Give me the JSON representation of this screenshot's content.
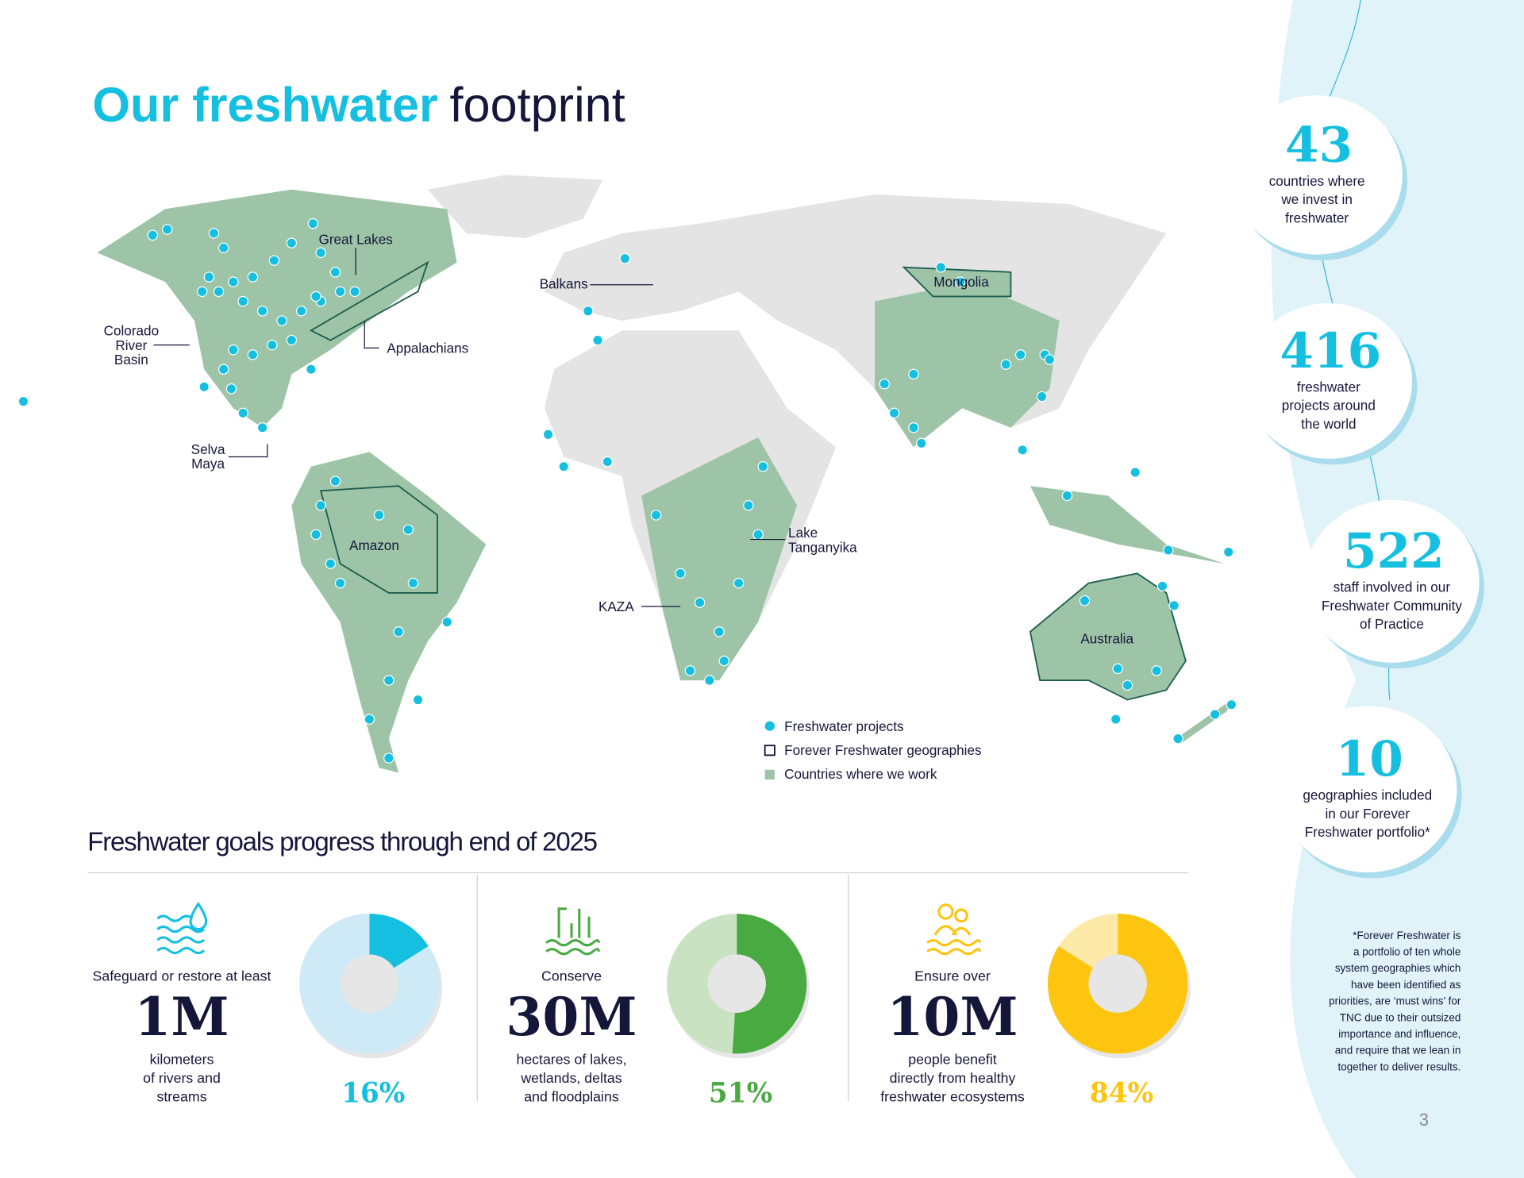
{
  "title": {
    "highlight": "Our freshwater",
    "rest": "footprint"
  },
  "stats": [
    {
      "number": 43,
      "lines": [
        "countries where",
        "we invest in",
        "freshwater"
      ]
    },
    {
      "number": 416,
      "lines": [
        "freshwater",
        "projects around",
        "the world"
      ]
    },
    {
      "number": 522,
      "lines": [
        "staff involved in our",
        "Freshwater Community",
        "of Practice"
      ]
    },
    {
      "number": 10,
      "lines": [
        "geographies included",
        "in our Forever",
        "Freshwater portfolio*"
      ]
    }
  ],
  "map": {
    "labels": [
      {
        "lines": [
          "Great Lakes"
        ]
      },
      {
        "lines": [
          "Balkans"
        ]
      },
      {
        "lines": [
          "Mongolia"
        ]
      },
      {
        "lines": [
          "Colorado",
          "River",
          "Basin"
        ]
      },
      {
        "lines": [
          "Appalachians"
        ]
      },
      {
        "lines": [
          "Selva",
          "Maya"
        ]
      },
      {
        "lines": [
          "Amazon"
        ]
      },
      {
        "lines": [
          "Lake",
          "Tanganyika"
        ]
      },
      {
        "lines": [
          "KAZA"
        ]
      },
      {
        "lines": [
          "Australia"
        ]
      }
    ],
    "legend": [
      "Freshwater projects",
      "Forever Freshwater geographies",
      "Countries where we work"
    ]
  },
  "goals": {
    "heading": "Freshwater goals progress through end of 2025",
    "items": [
      {
        "intro": "Safeguard or restore at least",
        "amount": "1M",
        "lines": [
          "kilometers",
          "of rivers and",
          "streams"
        ]
      },
      {
        "intro": "Conserve",
        "amount": "30M",
        "lines": [
          "hectares of lakes,",
          "wetlands, deltas",
          "and floodplains"
        ]
      },
      {
        "intro": "Ensure over",
        "amount": "10M",
        "lines": [
          "people benefit",
          "directly from healthy",
          "freshwater ecosystems"
        ]
      }
    ]
  },
  "chart_data": [
    {
      "type": "donut",
      "values": [
        16,
        84
      ],
      "value_labels": [
        "16%",
        null
      ],
      "colors": [
        "#14bfe0",
        "#cdeaf6"
      ]
    },
    {
      "type": "donut",
      "values": [
        51,
        49
      ],
      "value_labels": [
        "51%",
        null
      ],
      "colors": [
        "#4aaa42",
        "#c9e2c2"
      ]
    },
    {
      "type": "donut",
      "values": [
        84,
        16
      ],
      "value_labels": [
        "84%",
        null
      ],
      "colors": [
        "#fdc50f",
        "#fde9a8"
      ]
    }
  ],
  "footnote": [
    "*Forever Freshwater is",
    "a portfolio of ten whole",
    "system geographies which",
    "have been identified as",
    "priorities, are ‘must wins’ for",
    "TNC due to their outsized",
    "importance and influence,",
    "and require that we lean in",
    "together to deliver results."
  ],
  "page_number": "3"
}
